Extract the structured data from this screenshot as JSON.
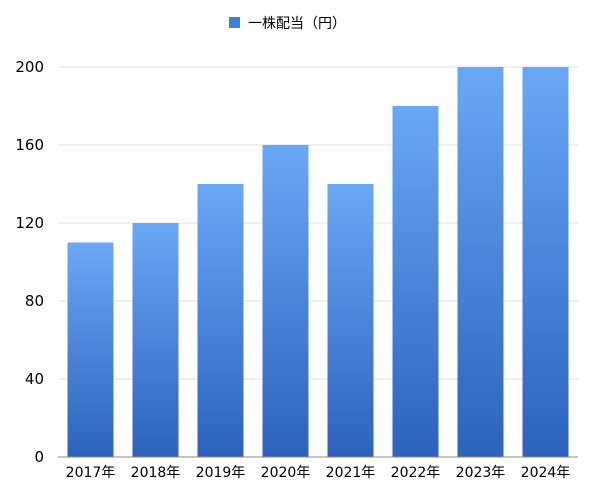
{
  "chart_data": {
    "type": "bar",
    "categories": [
      "2017年",
      "2018年",
      "2019年",
      "2020年",
      "2021年",
      "2022年",
      "2023年",
      "2024年"
    ],
    "series": [
      {
        "name": "一株配当（円）",
        "values": [
          110,
          120,
          140,
          160,
          140,
          180,
          200,
          200
        ]
      }
    ],
    "yticks": [
      0,
      40,
      80,
      120,
      160,
      200
    ],
    "ylim": [
      0,
      200
    ],
    "grid": true,
    "legend_position": "top-center",
    "colors": {
      "bar_top": "#6aa8f5",
      "bar_bottom": "#2c62bd",
      "legend_swatch": "#3f7fd8"
    }
  }
}
